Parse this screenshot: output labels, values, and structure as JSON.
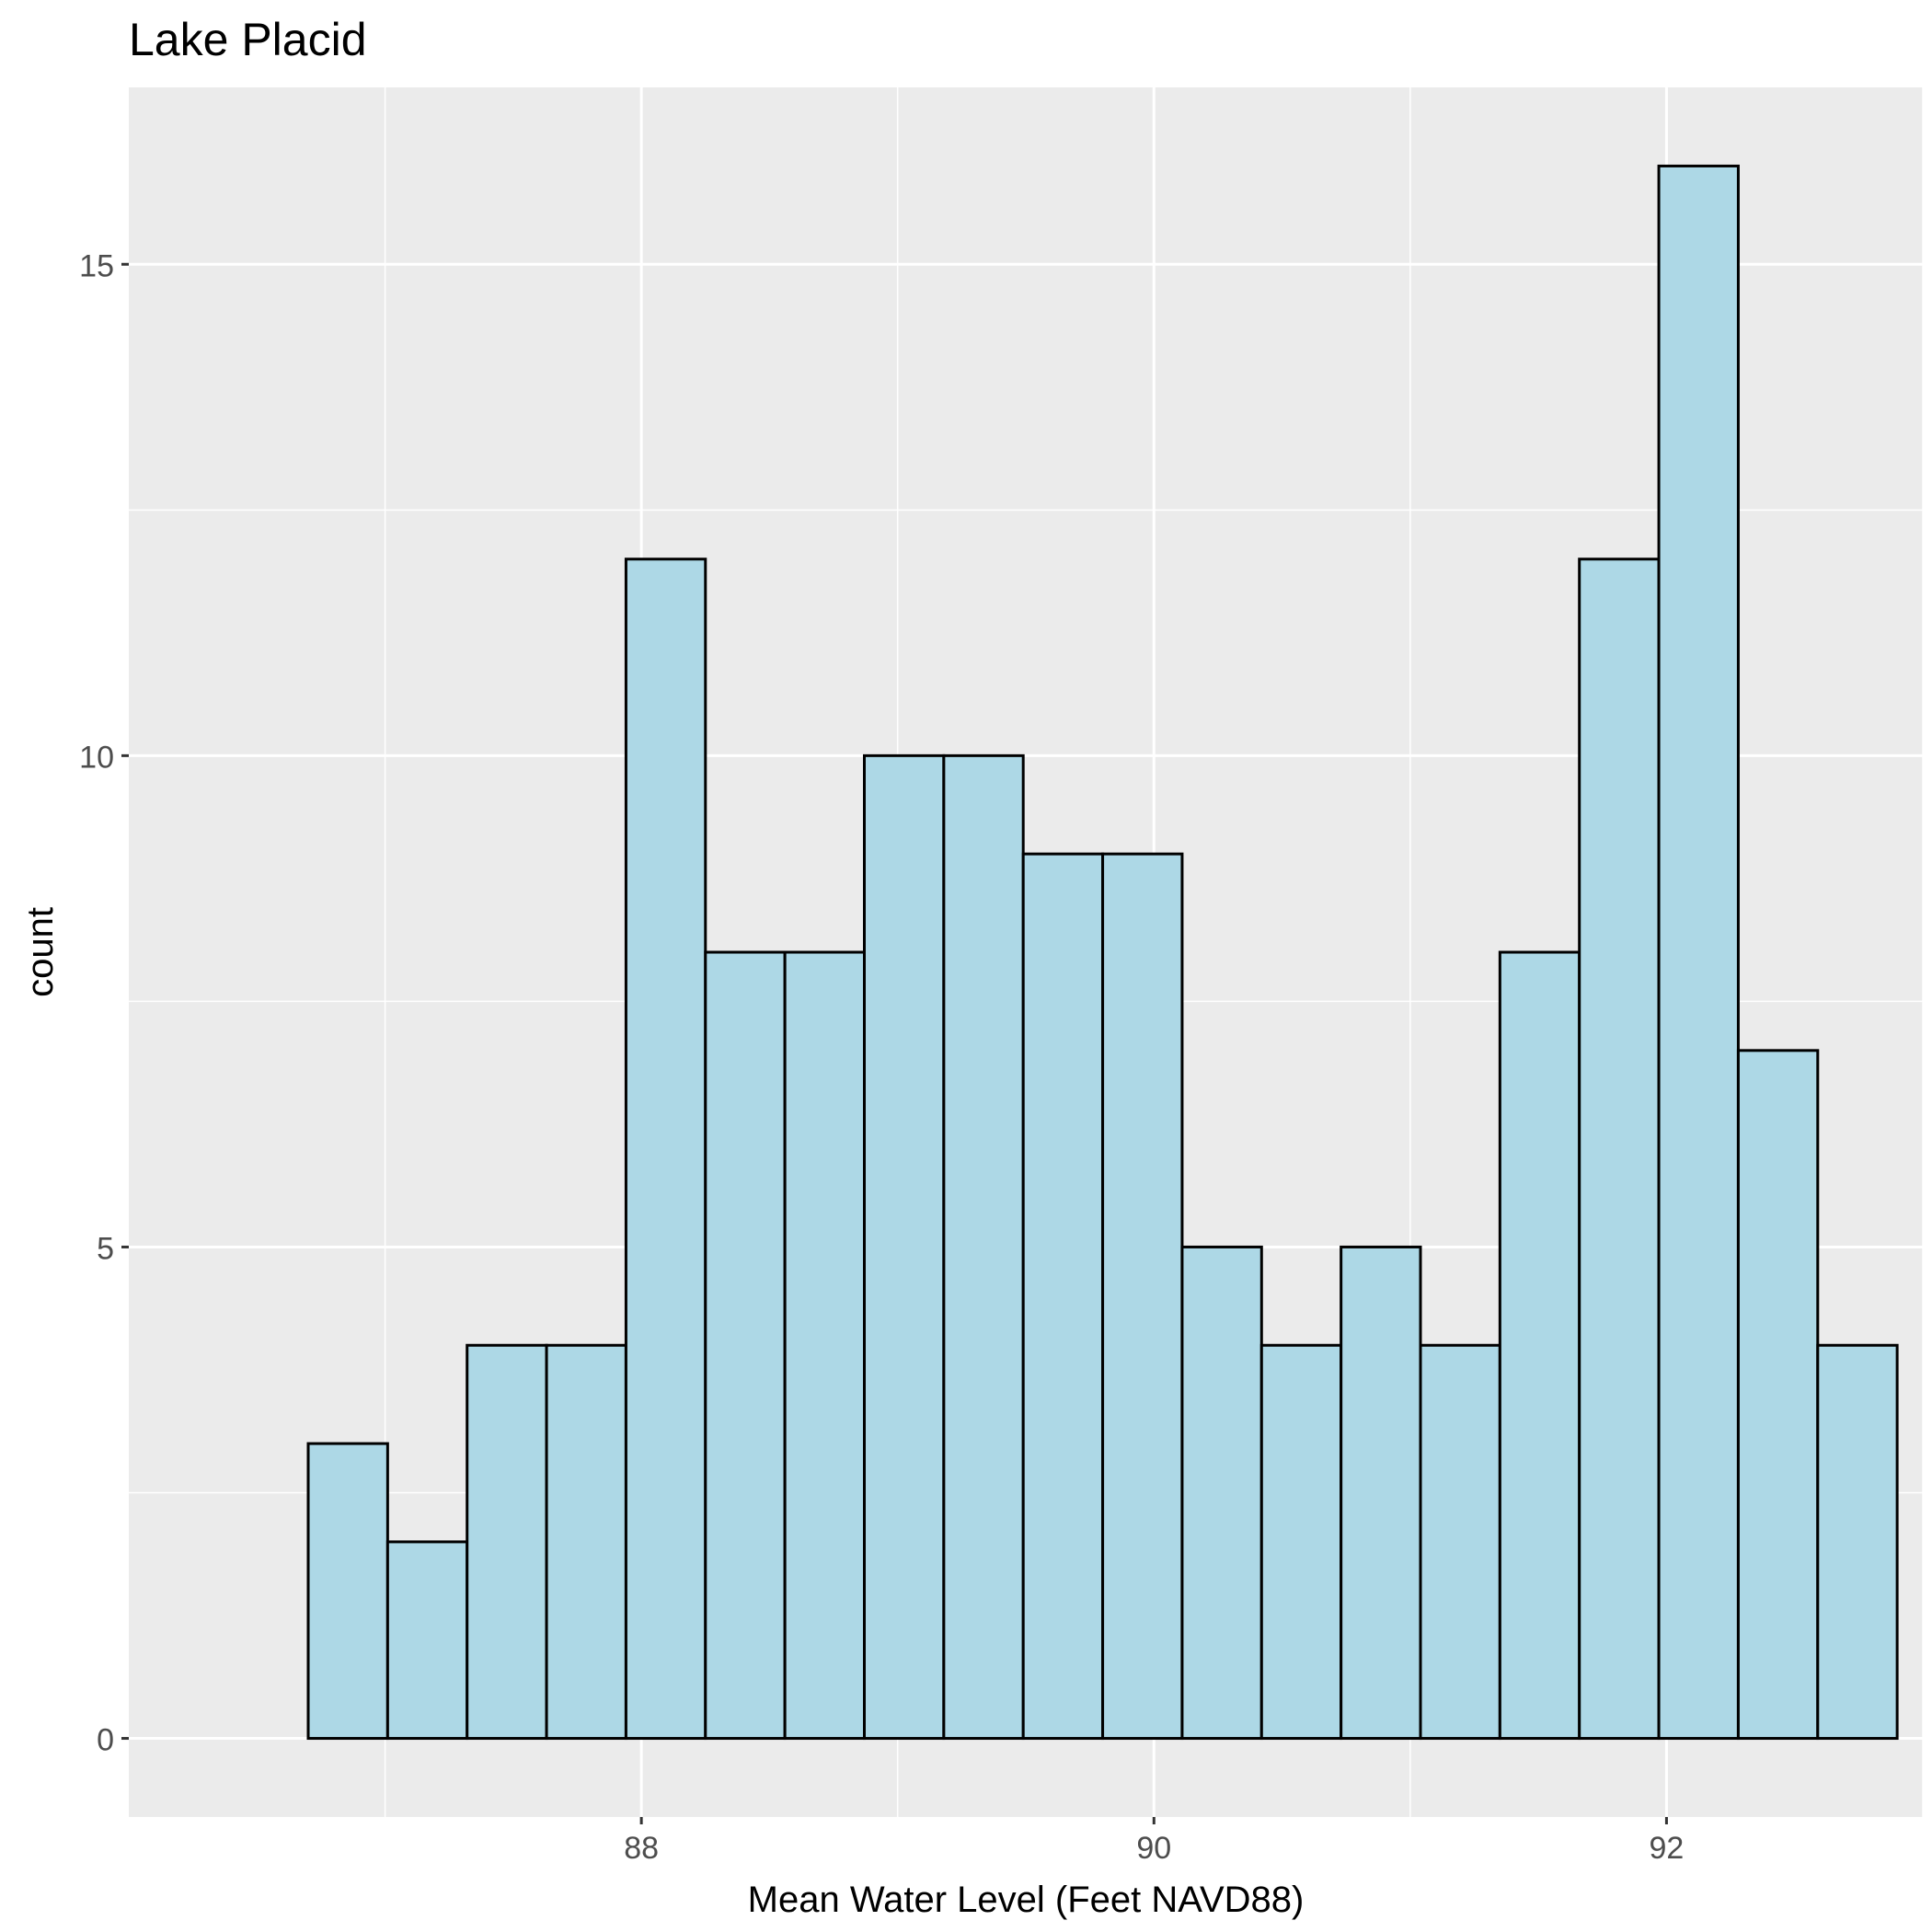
{
  "chart_data": {
    "type": "bar",
    "subtype": "histogram",
    "title": "Lake Placid",
    "xlabel": "Mean Water Level (Feet NAVD88)",
    "ylabel": "count",
    "bin_edges": [
      86.7,
      87.01,
      87.32,
      87.63,
      87.94,
      88.25,
      88.56,
      88.87,
      89.18,
      89.49,
      89.8,
      90.11,
      90.42,
      90.73,
      91.04,
      91.35,
      91.66,
      91.97,
      92.28,
      92.59,
      92.9
    ],
    "values": [
      3,
      2,
      4,
      4,
      12,
      8,
      8,
      10,
      10,
      9,
      9,
      5,
      4,
      5,
      4,
      8,
      12,
      16,
      7,
      4
    ],
    "xlim": [
      86.0,
      93.0
    ],
    "ylim": [
      -0.8,
      16.8
    ],
    "x_ticks": [
      88,
      90,
      92
    ],
    "x_tick_labels": [
      "88",
      "90",
      "92"
    ],
    "y_ticks": [
      0,
      5,
      10,
      15
    ],
    "y_tick_labels": [
      "0",
      "5",
      "10",
      "15"
    ],
    "grid": true,
    "legend": "none",
    "colors": {
      "panel_background": "#EBEBEB",
      "grid_line": "#FFFFFF",
      "bar_fill": "#ADD8E6",
      "bar_outline": "#000000",
      "tick_label": "#4D4D4D",
      "tick_mark": "#333333"
    }
  }
}
